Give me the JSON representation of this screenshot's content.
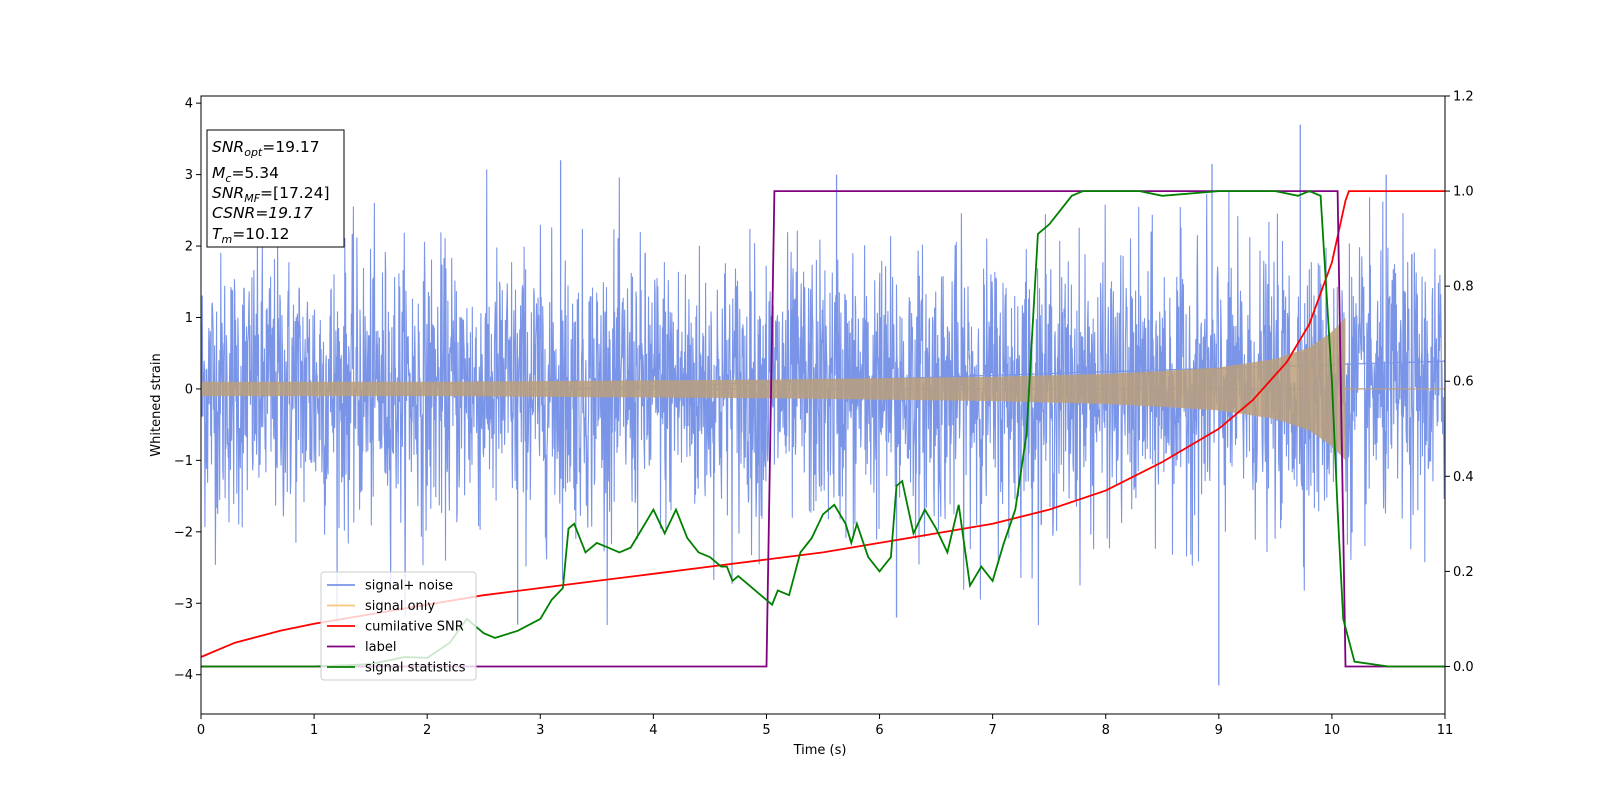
{
  "chart_data": {
    "type": "line",
    "xlabel": "Time (s)",
    "ylabel": "Whitened strain",
    "xlim": [
      0,
      11
    ],
    "ylim": [
      -4.55,
      4.1
    ],
    "y2lim": [
      -0.1,
      1.2
    ],
    "xticks": [
      "0",
      "1",
      "2",
      "3",
      "4",
      "5",
      "6",
      "7",
      "8",
      "9",
      "10",
      "11"
    ],
    "yticks": [
      "−4",
      "−3",
      "−2",
      "−1",
      "0",
      "1",
      "2",
      "3",
      "4"
    ],
    "y2ticks": [
      "0.0",
      "0.2",
      "0.4",
      "0.6",
      "0.8",
      "1.0",
      "1.2"
    ],
    "grid": false,
    "legend_position": "lower-left",
    "annotation": {
      "snr_opt": "=19.17",
      "mc": "=5.34",
      "snr_mf": "=[17.24]",
      "csnr": "CSNR=19.17",
      "tm": "=10.12"
    },
    "series": [
      {
        "name": "signal+ noise",
        "color": "#7a95e8",
        "axis": "left",
        "description_values": {
          "noise_amplitude": 1.3,
          "peak_max": 3.7,
          "peak_min": -4.15,
          "peak_times": [
            3.18,
            5.62,
            9.72,
            9.0
          ]
        }
      },
      {
        "name": "signal only",
        "color": "#f5c87a",
        "axis": "left",
        "envelope": {
          "t": [
            0,
            1,
            2,
            3,
            4,
            5,
            6,
            7,
            8,
            8.5,
            9,
            9.5,
            9.8,
            10,
            10.12
          ],
          "amp": [
            0.1,
            0.1,
            0.1,
            0.11,
            0.12,
            0.13,
            0.15,
            0.17,
            0.21,
            0.25,
            0.3,
            0.42,
            0.58,
            0.8,
            1.0
          ]
        }
      },
      {
        "name": "cumilative SNR",
        "color": "#ff0000",
        "axis": "right",
        "x": [
          0,
          0.3,
          0.7,
          1,
          1.5,
          2,
          2.5,
          3,
          3.5,
          4,
          4.5,
          5,
          5.5,
          6,
          6.5,
          7,
          7.5,
          8,
          8.5,
          9,
          9.3,
          9.6,
          9.8,
          10,
          10.12,
          10.15,
          11
        ],
        "values": [
          0.02,
          0.05,
          0.075,
          0.09,
          0.11,
          0.13,
          0.15,
          0.165,
          0.18,
          0.195,
          0.21,
          0.225,
          0.24,
          0.26,
          0.28,
          0.3,
          0.33,
          0.37,
          0.43,
          0.5,
          0.56,
          0.64,
          0.72,
          0.85,
          0.98,
          1.0,
          1.0
        ]
      },
      {
        "name": "label",
        "color": "#800080",
        "axis": "right",
        "x": [
          0,
          5.0,
          5.07,
          10.05,
          10.12,
          11
        ],
        "values": [
          0,
          0,
          1,
          1,
          0,
          0
        ]
      },
      {
        "name": "signal statistics",
        "color": "#008000",
        "axis": "right",
        "x": [
          0,
          1,
          1.5,
          1.8,
          2.0,
          2.2,
          2.35,
          2.5,
          2.6,
          2.8,
          3.0,
          3.1,
          3.2,
          3.25,
          3.3,
          3.4,
          3.5,
          3.6,
          3.7,
          3.8,
          3.9,
          4.0,
          4.1,
          4.2,
          4.3,
          4.4,
          4.5,
          4.6,
          4.65,
          4.7,
          4.75,
          4.85,
          4.95,
          5.05,
          5.1,
          5.2,
          5.3,
          5.4,
          5.5,
          5.6,
          5.7,
          5.75,
          5.8,
          5.9,
          6.0,
          6.1,
          6.15,
          6.2,
          6.3,
          6.4,
          6.5,
          6.6,
          6.7,
          6.8,
          6.9,
          7.0,
          7.1,
          7.2,
          7.3,
          7.35,
          7.4,
          7.5,
          7.6,
          7.7,
          7.8,
          8.0,
          8.3,
          8.5,
          9.0,
          9.5,
          9.7,
          9.8,
          9.9,
          10.0,
          10.05,
          10.1,
          10.2,
          10.5,
          11
        ],
        "values": [
          0,
          0,
          0.005,
          0.02,
          0.018,
          0.05,
          0.1,
          0.07,
          0.06,
          0.075,
          0.1,
          0.14,
          0.165,
          0.29,
          0.3,
          0.24,
          0.26,
          0.25,
          0.24,
          0.25,
          0.29,
          0.33,
          0.28,
          0.33,
          0.27,
          0.24,
          0.23,
          0.21,
          0.21,
          0.18,
          0.19,
          0.17,
          0.15,
          0.13,
          0.16,
          0.15,
          0.24,
          0.27,
          0.32,
          0.34,
          0.3,
          0.26,
          0.3,
          0.23,
          0.2,
          0.23,
          0.38,
          0.39,
          0.28,
          0.33,
          0.29,
          0.24,
          0.34,
          0.17,
          0.21,
          0.18,
          0.26,
          0.33,
          0.49,
          0.7,
          0.91,
          0.93,
          0.96,
          0.99,
          1.0,
          1.0,
          1.0,
          0.99,
          1.0,
          1.0,
          0.99,
          1.0,
          0.99,
          0.6,
          0.33,
          0.1,
          0.01,
          0.0,
          0.0
        ]
      }
    ]
  }
}
